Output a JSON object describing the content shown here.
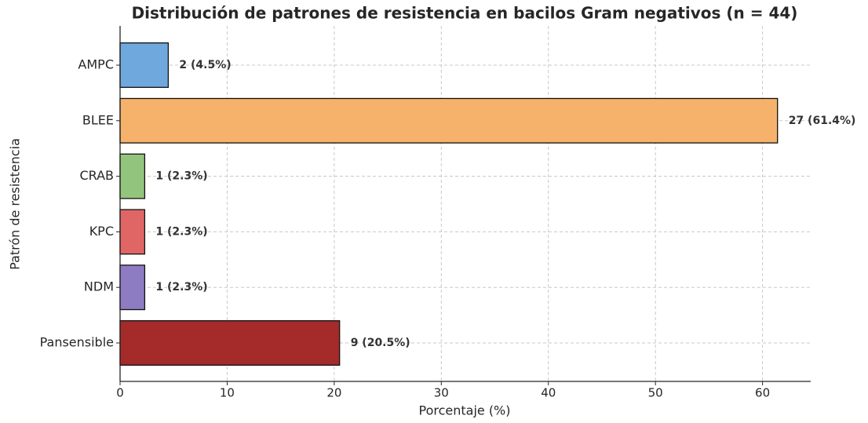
{
  "chart_data": {
    "type": "bar",
    "orientation": "horizontal",
    "title": "Distribución de patrones de resistencia en bacilos Gram negativos (n = 44)",
    "xlabel": "Porcentaje (%)",
    "ylabel": "Patrón de resistencia",
    "categories": [
      "AMPC",
      "BLEE",
      "CRAB",
      "KPC",
      "NDM",
      "Pansensible"
    ],
    "values": [
      4.5,
      61.4,
      2.3,
      2.3,
      2.3,
      20.5
    ],
    "value_labels": [
      "2 (4.5%)",
      "27 (61.4%)",
      "1 (2.3%)",
      "1 (2.3%)",
      "1 (2.3%)",
      "9 (20.5%)"
    ],
    "colors": [
      "#6fa8dc",
      "#f6b26b",
      "#93c47d",
      "#e06666",
      "#8e7cc3",
      "#a52a2a"
    ],
    "xlim": [
      0,
      64.5
    ],
    "xticks": [
      0,
      10,
      20,
      30,
      40,
      50,
      60
    ],
    "grid": true
  }
}
